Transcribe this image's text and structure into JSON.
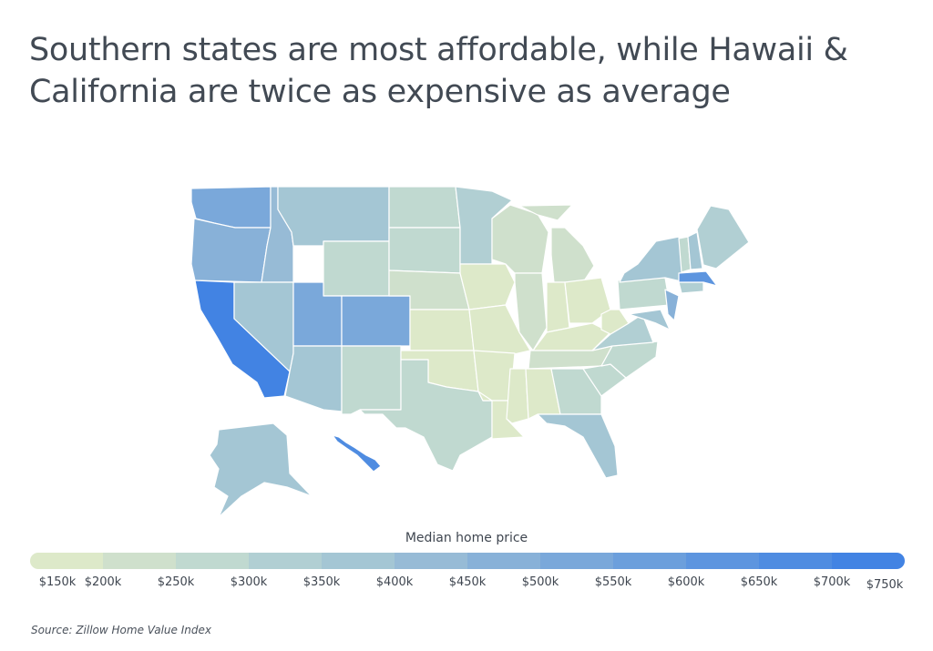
{
  "title": "Southern states are most affordable, while Hawaii & California are twice as expensive as average",
  "legend": {
    "title": "Median home price",
    "ticks": [
      "$150k",
      "$200k",
      "$250k",
      "$300k",
      "$350k",
      "$400k",
      "$450k",
      "$500k",
      "$550k",
      "$600k",
      "$650k",
      "$700k",
      "$750k"
    ],
    "colors": [
      "#dde9c9",
      "#cfe0cc",
      "#c0d9d0",
      "#b1cfd3",
      "#a4c6d4",
      "#97bbd6",
      "#88b1d8",
      "#7aa8da",
      "#6c9fdc",
      "#5d95df",
      "#4f8ce1",
      "#4283e3"
    ]
  },
  "state_price_bins": {
    "WA": 7,
    "OR": 6,
    "CA": 11,
    "ID": 5,
    "NV": 4,
    "MT": 4,
    "WY": 2,
    "UT": 7,
    "CO": 7,
    "AZ": 4,
    "NM": 2,
    "ND": 2,
    "SD": 2,
    "NE": 1,
    "KS": 0,
    "OK": 0,
    "TX": 2,
    "MN": 3,
    "IA": 0,
    "MO": 0,
    "AR": 0,
    "LA": 0,
    "WI": 1,
    "IL": 1,
    "MI": 1,
    "IN": 0,
    "OH": 0,
    "KY": 0,
    "TN": 1,
    "MS": 0,
    "AL": 0,
    "GA": 2,
    "FL": 4,
    "SC": 2,
    "NC": 2,
    "VA": 3,
    "WV": 0,
    "PA": 2,
    "NY": 4,
    "NJ": 6,
    "MD": 4,
    "CT": 3,
    "MA": 9,
    "VT": 2,
    "NH": 4,
    "ME": 3,
    "AK": 4,
    "HI": 10
  },
  "source": "Source:  Zillow Home Value Index"
}
